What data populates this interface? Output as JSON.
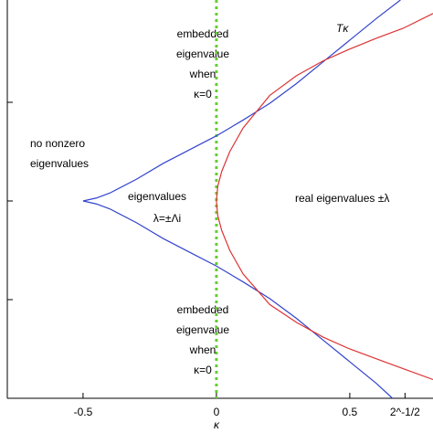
{
  "chart_data": {
    "type": "line",
    "x_label": "κ",
    "xlim": [
      -0.784,
      0.812
    ],
    "ylim": [
      -2,
      2.037
    ],
    "xticks": [
      -0.5,
      0,
      0.5,
      {
        "value": 0.7071,
        "label": "2^-1/2"
      }
    ],
    "yticks": [
      -1,
      0,
      1
    ],
    "vline": {
      "x": 0,
      "color": "#66cc33"
    },
    "series": [
      {
        "color": "#3344cc",
        "x": [
          -0.5,
          -0.45,
          -0.4,
          -0.3,
          -0.2,
          -0.1,
          0,
          0.1,
          0.2,
          0.3,
          0.4,
          0.5,
          0.6,
          0.69
        ],
        "values": [
          0,
          0.03,
          0.08,
          0.22,
          0.38,
          0.52,
          0.66,
          0.82,
          0.99,
          1.19,
          1.41,
          1.63,
          1.85,
          2.037
        ]
      },
      {
        "color": "#3344cc",
        "x": [
          -0.5,
          -0.45,
          -0.4,
          -0.3,
          -0.2,
          -0.1,
          0,
          0.1,
          0.2,
          0.3,
          0.4,
          0.5,
          0.6,
          0.66
        ],
        "values": [
          0,
          -0.03,
          -0.08,
          -0.22,
          -0.38,
          -0.52,
          -0.66,
          -0.82,
          -0.99,
          -1.19,
          -1.41,
          -1.63,
          -1.85,
          -2
        ]
      },
      {
        "color": "#dd3333",
        "x": [
          0,
          0.005,
          0.02,
          0.05,
          0.1,
          0.2,
          0.3,
          0.4,
          0.5,
          0.6,
          0.7,
          0.812
        ],
        "values": [
          0,
          0.15,
          0.3,
          0.5,
          0.74,
          1.07,
          1.27,
          1.42,
          1.54,
          1.65,
          1.75,
          1.9
        ]
      },
      {
        "color": "#dd3333",
        "x": [
          0,
          0.005,
          0.02,
          0.05,
          0.1,
          0.2,
          0.3,
          0.4,
          0.5,
          0.6,
          0.7,
          0.812
        ],
        "values": [
          0,
          -0.15,
          -0.3,
          -0.5,
          -0.74,
          -1.05,
          -1.23,
          -1.38,
          -1.5,
          -1.6,
          -1.7,
          -1.81
        ]
      }
    ],
    "annotations": [
      {
        "lines": [
          "embedded",
          "eigenvalue",
          "when",
          "κ=0"
        ]
      },
      {
        "lines": [
          "embedded",
          "eigenvalue",
          "when",
          "κ=0"
        ]
      },
      {
        "lines": [
          "no nonzero",
          "eigenvalues"
        ]
      },
      {
        "lines": [
          "eigenvalues",
          "λ=±Λi"
        ]
      },
      {
        "lines": [
          "real eigenvalues  ±λ"
        ]
      },
      {
        "lines": [
          "Tκ"
        ]
      }
    ]
  }
}
